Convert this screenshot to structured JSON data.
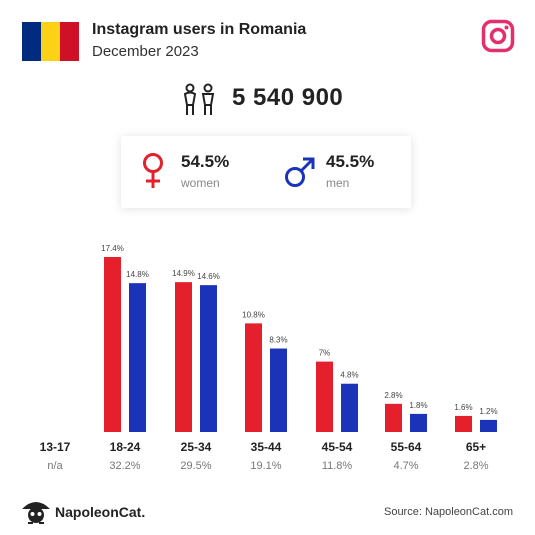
{
  "header": {
    "title": "Instagram users in Romania",
    "subtitle": "December 2023",
    "flag_colors": [
      "#002B7F",
      "#FCD116",
      "#CE1126"
    ],
    "platform_icon": "instagram-icon",
    "platform_color": "#E1306C"
  },
  "summary": {
    "icon": "users-icon",
    "total": "5 540 900"
  },
  "gender": {
    "women": {
      "icon": "female-icon",
      "pct": "54.5%",
      "label": "women",
      "color": "#E3202B"
    },
    "men": {
      "icon": "male-icon",
      "pct": "45.5%",
      "label": "men",
      "color": "#1A33B8"
    }
  },
  "chart_data": {
    "type": "bar",
    "categories": [
      "13-17",
      "18-24",
      "25-34",
      "35-44",
      "45-54",
      "55-64",
      "65+"
    ],
    "category_totals": [
      "n/a",
      "32.2%",
      "29.5%",
      "19.1%",
      "11.8%",
      "4.7%",
      "2.8%"
    ],
    "series": [
      {
        "color": "#E3202B",
        "values": [
          null,
          17.4,
          14.9,
          10.8,
          7,
          2.8,
          1.6
        ],
        "labels": [
          "",
          "17.4%",
          "14.9%",
          "10.8%",
          "7%",
          "2.8%",
          "1.6%"
        ]
      },
      {
        "color": "#1A33B8",
        "values": [
          null,
          14.8,
          14.6,
          8.3,
          4.8,
          1.8,
          1.2
        ],
        "labels": [
          "",
          "14.8%",
          "14.6%",
          "8.3%",
          "4.8%",
          "1.8%",
          "1.2%"
        ]
      }
    ],
    "ylim": [
      0,
      17.4
    ],
    "grid": false
  },
  "footer": {
    "brand": "NapoleonCat.",
    "logo_icon": "napoleoncat-logo-icon",
    "source": "Source: NapoleonCat.com"
  }
}
